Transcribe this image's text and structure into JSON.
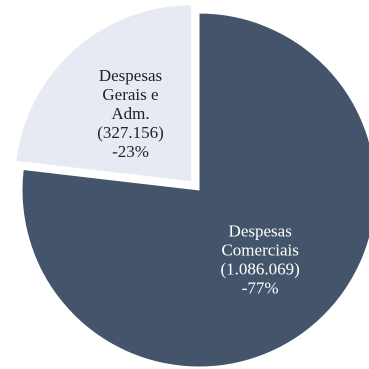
{
  "chart_data": {
    "type": "pie",
    "title": "",
    "slices": [
      {
        "name": "Despesas Comerciais",
        "value": 1086069,
        "value_label": "(1.086.069)",
        "percent_label": "-77%",
        "label_lines": [
          "Despesas",
          "Comerciais"
        ],
        "color": "#44546a",
        "text_color": "#ffffff",
        "exploded": false
      },
      {
        "name": "Despesas Gerais e Adm.",
        "value": 327156,
        "value_label": "(327.156)",
        "percent_label": "-23%",
        "label_lines": [
          "Despesas",
          "Gerais e",
          "Adm."
        ],
        "color": "#e8eaf3",
        "text_color": "#222222",
        "exploded": true
      }
    ],
    "start_angle_deg": 0,
    "direction": "clockwise",
    "legend": "none"
  }
}
